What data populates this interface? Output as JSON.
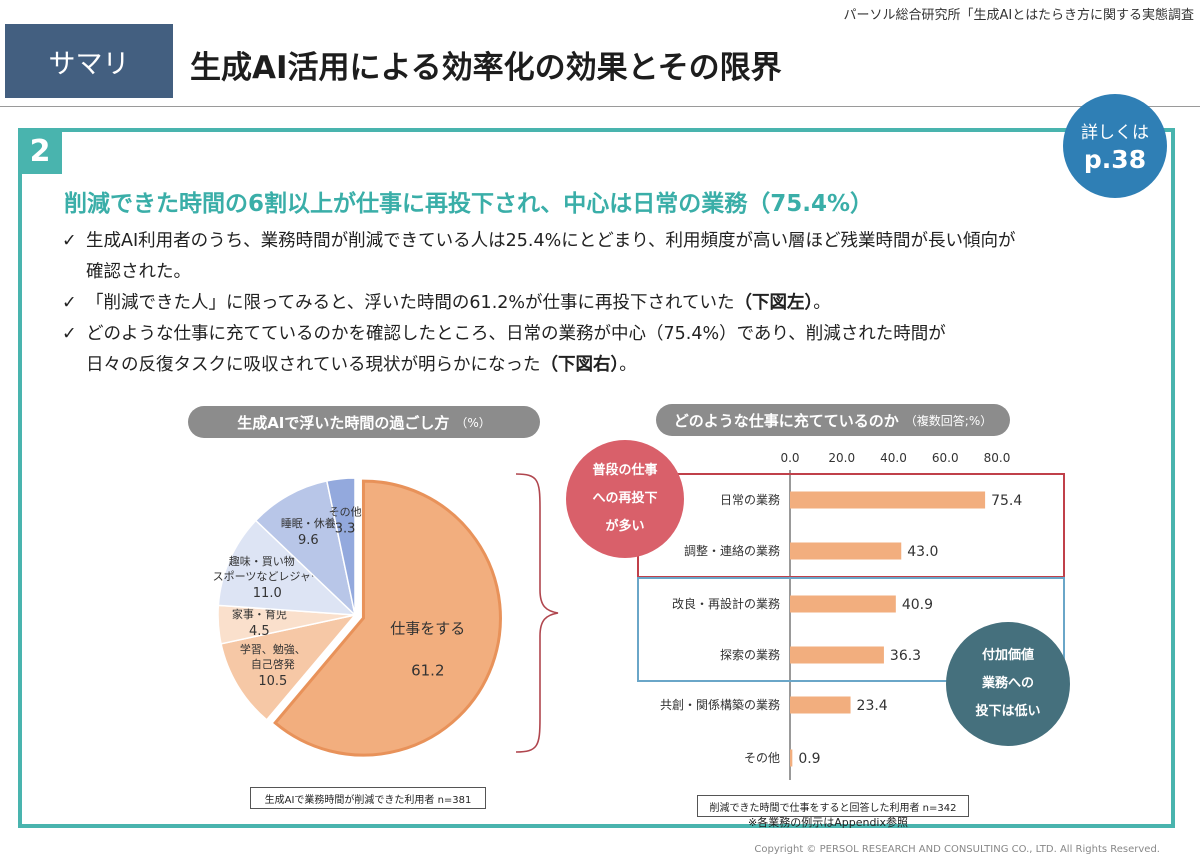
{
  "header": {
    "source_note": "パーソル総合研究所「生成AIとはたらき方に関する実態調査",
    "badge": "サマリ",
    "title": "生成AI活用による効率化の効果とその限界"
  },
  "section": {
    "number": "2",
    "page_ref_line1": "詳しくは",
    "page_ref_line2": "p.38",
    "headline": "削減できた時間の6割以上が仕事に再投下され、中心は日常の業務（75.4%）"
  },
  "bullets": [
    {
      "check": "✓",
      "line1": "生成AI利用者のうち、業務時間が削減できている人は25.4%にとどまり、利用頻度が高い層ほど残業時間が長い傾向が",
      "line2": "確認された。"
    },
    {
      "check": "✓",
      "line1": "「削減できた人」に限ってみると、浮いた時間の61.2%が仕事に再投下されていた",
      "bold": "（下図左）",
      "tail": "。"
    },
    {
      "check": "✓",
      "line1": "どのような仕事に充てているのかを確認したところ、日常の業務が中心（75.4%）であり、削減された時間が",
      "line2": "日々の反復タスクに吸収されている現状が明らかになった",
      "bold": "（下図右）",
      "tail": "。"
    }
  ],
  "left_chart_pill": {
    "main": "生成AIで浮いた時間の過ごし方",
    "unit": "（%）"
  },
  "right_chart_pill": {
    "main": "どのような仕事に充てているのか",
    "unit": "（複数回答;%）"
  },
  "left_note": "生成AIで業務時間が削減できた利用者 n=381",
  "right_note": "削減できた時間で仕事をすると回答した利用者 n=342",
  "appendix_note": "※各業務の例示はAppendix参照",
  "circle_red": [
    "普段の仕事",
    "への再投下",
    "が多い"
  ],
  "circle_teal": [
    "付加価値",
    "業務への",
    "投下は低い"
  ],
  "copyright": "Copyright © PERSOL RESEARCH AND CONSULTING CO., LTD. All Rights Reserved.",
  "colors": {
    "accent_teal": "#49b4ae",
    "badge_navy": "#435f80",
    "pie_main": "#f2ae7e",
    "pie_main_stroke": "#e8925a",
    "bar": "#f2ae7e",
    "box_red": "#c0404a",
    "box_blue": "#6aa6c8"
  },
  "chart_data": [
    {
      "type": "pie",
      "categories": [
        "仕事をする",
        "学習、勉強、自己啓発",
        "家事・育児",
        "趣味・買い物・スポーツなどレジャー",
        "睡眠・休養",
        "その他"
      ],
      "values": [
        61.2,
        10.5,
        4.5,
        11.0,
        9.6,
        3.3
      ],
      "slice_label_lines": [
        [
          "仕事をする"
        ],
        [
          "学習、勉強、",
          "自己啓発"
        ],
        [
          "家事・育児"
        ],
        [
          "趣味・買い物・",
          "スポーツなどレジャー"
        ],
        [
          "睡眠・休養"
        ],
        [
          "その他"
        ]
      ],
      "value_labels": [
        "61.2",
        "10.5",
        "4.5",
        "11.0",
        "9.6",
        "3.3"
      ],
      "slice_colors": [
        "#f2ae7e",
        "#f6c8a6",
        "#fae0cc",
        "#dde4f4",
        "#b8c6e8",
        "#93a9dd"
      ],
      "exploded_slice": "仕事をする"
    },
    {
      "type": "bar",
      "orientation": "horizontal",
      "categories": [
        "日常の業務",
        "調整・連絡の業務",
        "改良・再設計の業務",
        "探索の業務",
        "共創・関係構築の業務",
        "その他"
      ],
      "values": [
        75.4,
        43.0,
        40.9,
        36.3,
        23.4,
        0.9
      ],
      "value_labels": [
        "75.4",
        "43.0",
        "40.9",
        "36.3",
        "23.4",
        "0.9"
      ],
      "xlim": [
        0,
        80
      ],
      "xticks": [
        "0.0",
        "20.0",
        "40.0",
        "60.0",
        "80.0"
      ],
      "axis_position": "top",
      "highlight_groups": [
        {
          "color": "red",
          "categories": [
            "日常の業務",
            "調整・連絡の業務"
          ]
        },
        {
          "color": "blue",
          "categories": [
            "改良・再設計の業務",
            "探索の業務"
          ]
        }
      ]
    }
  ]
}
